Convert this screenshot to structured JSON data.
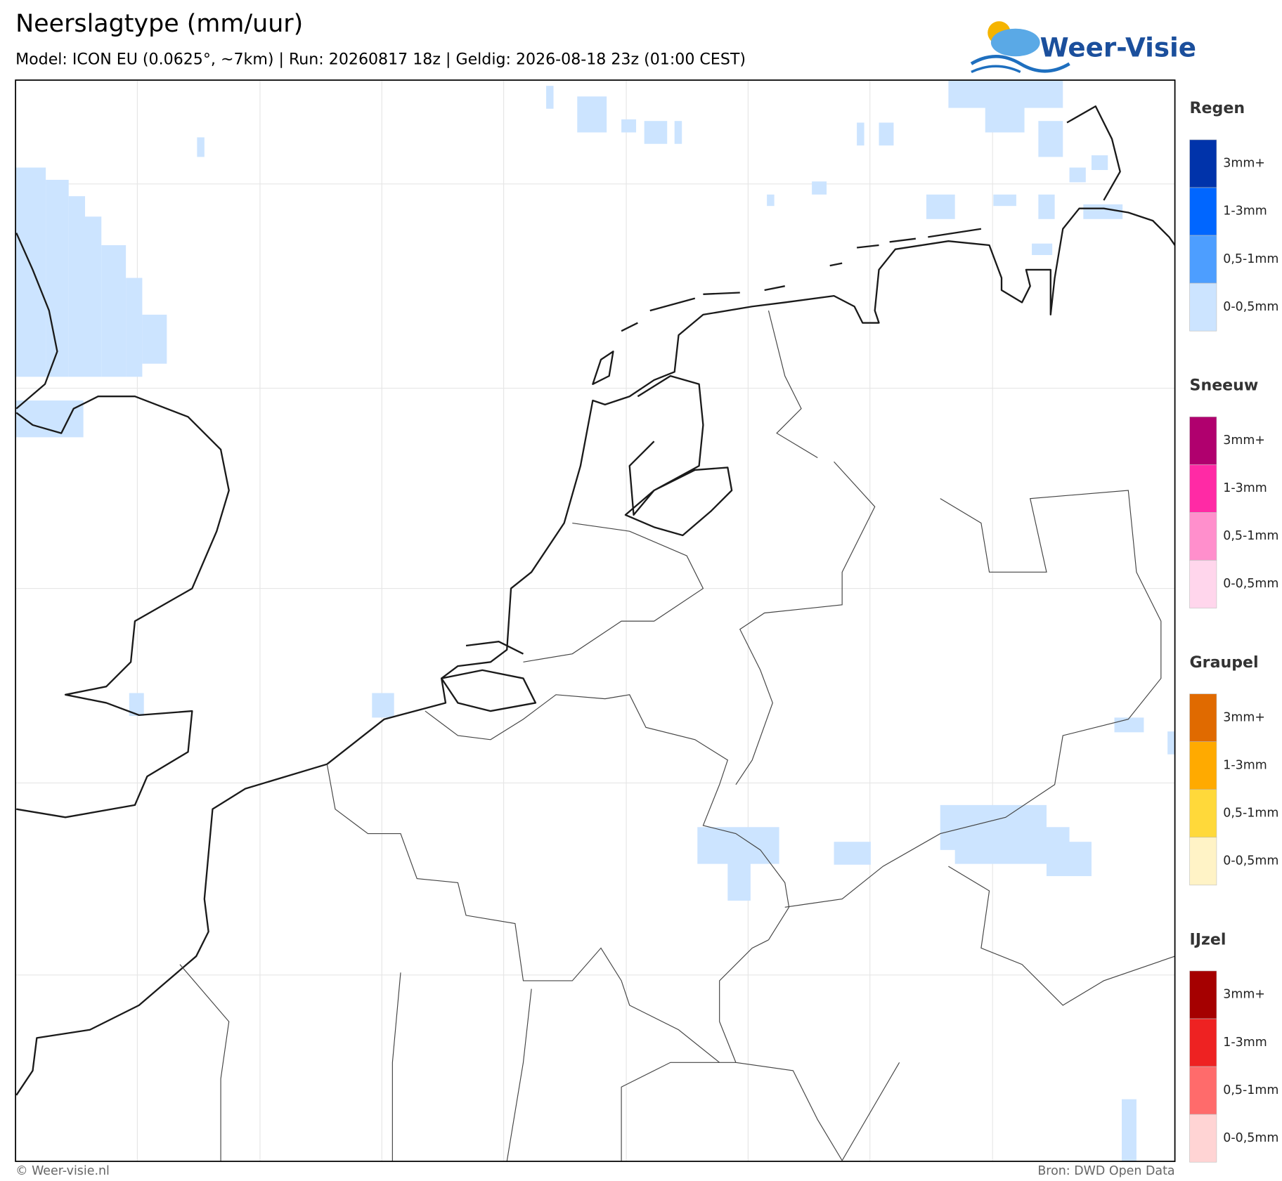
{
  "header": {
    "title": "Neerslagtype (mm/uur)",
    "subtitle": "Model: ICON EU (0.0625°, ~7km)  |  Run: 20260817 18z  |  Geldig: 2026-08-18 23z (01:00 CEST)",
    "logo": "Weer-Visie"
  },
  "legend": [
    {
      "title": "Regen",
      "items": [
        {
          "label": "3mm+",
          "color": "#0033aa"
        },
        {
          "label": "1-3mm",
          "color": "#0066ff"
        },
        {
          "label": "0,5-1mm",
          "color": "#4d9eff"
        },
        {
          "label": "0-0,5mm",
          "color": "#cce4ff"
        }
      ]
    },
    {
      "title": "Sneeuw",
      "items": [
        {
          "label": "3mm+",
          "color": "#b0006e"
        },
        {
          "label": "1-3mm",
          "color": "#ff2aa5"
        },
        {
          "label": "0,5-1mm",
          "color": "#ff8fcc"
        },
        {
          "label": "0-0,5mm",
          "color": "#ffd6ec"
        }
      ]
    },
    {
      "title": "Graupel",
      "items": [
        {
          "label": "3mm+",
          "color": "#e06a00"
        },
        {
          "label": "1-3mm",
          "color": "#ffaa00"
        },
        {
          "label": "0,5-1mm",
          "color": "#ffd93a"
        },
        {
          "label": "0-0,5mm",
          "color": "#fff3c6"
        }
      ]
    },
    {
      "title": "IJzel",
      "items": [
        {
          "label": "3mm+",
          "color": "#a50000"
        },
        {
          "label": "1-3mm",
          "color": "#ee2222"
        },
        {
          "label": "0,5-1mm",
          "color": "#ff6b6b"
        },
        {
          "label": "0-0,5mm",
          "color": "#ffd4d4"
        }
      ]
    }
  ],
  "footer": {
    "left": "© Weer-visie.nl",
    "right": "Bron: DWD Open Data"
  }
}
